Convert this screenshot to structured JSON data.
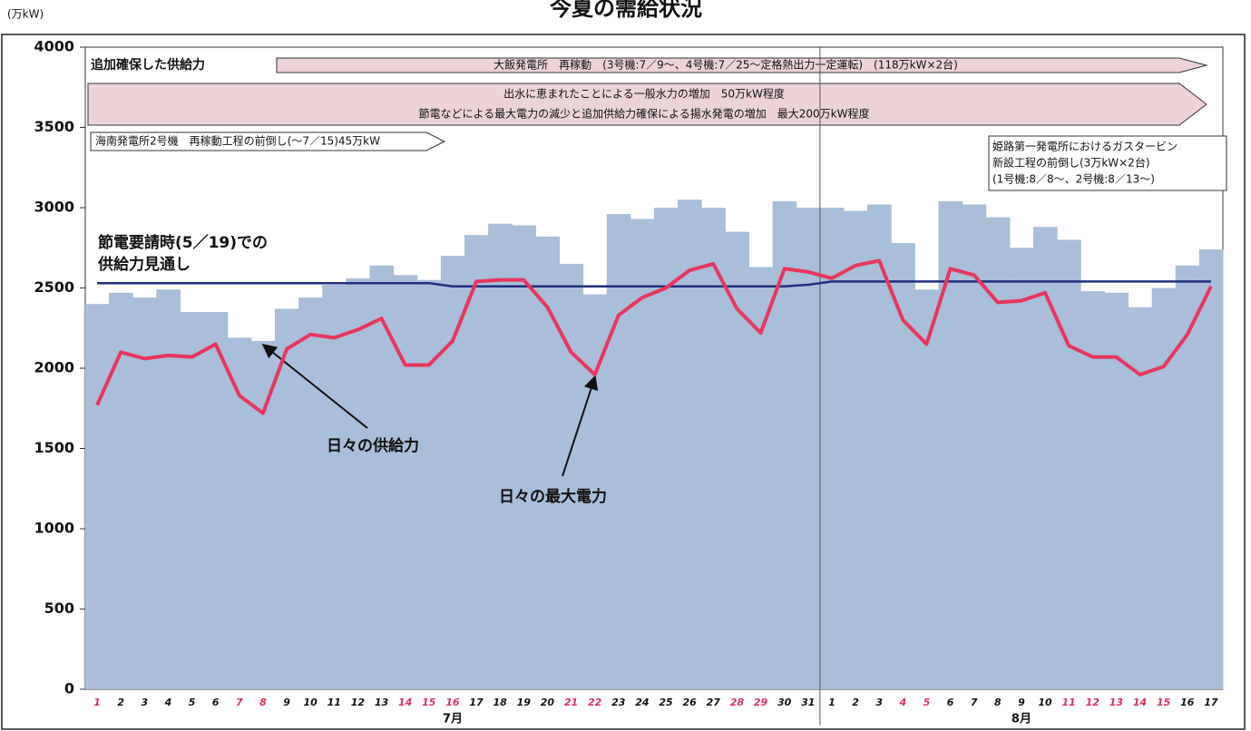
{
  "chart_data": {
    "type": "bar_line",
    "title": "今夏の需給状況",
    "y_unit": "(万kW)",
    "categories": [
      "1",
      "2",
      "3",
      "4",
      "5",
      "6",
      "7",
      "8",
      "9",
      "10",
      "11",
      "12",
      "13",
      "14",
      "15",
      "16",
      "17",
      "18",
      "19",
      "20",
      "21",
      "22",
      "23",
      "24",
      "25",
      "26",
      "27",
      "28",
      "29",
      "30",
      "31",
      "1",
      "2",
      "3",
      "4",
      "5",
      "6",
      "7",
      "8",
      "9",
      "10",
      "11",
      "12",
      "13",
      "14",
      "15",
      "16",
      "17"
    ],
    "category_label_colors": [
      "#e0305a",
      "#111",
      "#111",
      "#111",
      "#111",
      "#111",
      "#e0305a",
      "#e0305a",
      "#111",
      "#111",
      "#111",
      "#111",
      "#111",
      "#e0305a",
      "#e0305a",
      "#e0305a",
      "#111",
      "#111",
      "#111",
      "#111",
      "#e0305a",
      "#e0305a",
      "#111",
      "#111",
      "#111",
      "#111",
      "#111",
      "#e0305a",
      "#e0305a",
      "#111",
      "#111",
      "#111",
      "#111",
      "#111",
      "#e0305a",
      "#e0305a",
      "#111",
      "#111",
      "#111",
      "#111",
      "#111",
      "#e0305a",
      "#e0305a",
      "#e0305a",
      "#e0305a",
      "#e0305a",
      "#111",
      "#111"
    ],
    "month_labels": [
      "7月",
      "8月"
    ],
    "ylim": [
      0,
      4000
    ],
    "yticks": [
      0,
      500,
      1000,
      1500,
      2000,
      2500,
      3000,
      3500,
      4000
    ],
    "series": [
      {
        "name": "日々の供給力",
        "color": "#a9bed8",
        "values": [
          2400,
          2470,
          2440,
          2490,
          2350,
          2350,
          2190,
          2170,
          2370,
          2440,
          2520,
          2560,
          2640,
          2580,
          2550,
          2700,
          2830,
          2900,
          2890,
          2820,
          2650,
          2460,
          2960,
          2930,
          3000,
          3050,
          3000,
          2850,
          2630,
          3040,
          3000,
          3000,
          2980,
          3020,
          2780,
          2490,
          3040,
          3020,
          2940,
          2750,
          2880,
          2800,
          2480,
          2470,
          2380,
          2500,
          2640,
          2740
        ]
      },
      {
        "name": "日々の最大電力",
        "color": "#e8365d",
        "values": [
          1770,
          2100,
          2060,
          2080,
          2070,
          2150,
          1830,
          1720,
          2120,
          2210,
          2190,
          2240,
          2310,
          2020,
          2020,
          2170,
          2540,
          2550,
          2550,
          2380,
          2100,
          1960,
          2330,
          2440,
          2500,
          2610,
          2650,
          2370,
          2220,
          2620,
          2600,
          2560,
          2640,
          2670,
          2300,
          2150,
          2620,
          2580,
          2410,
          2420,
          2470,
          2140,
          2070,
          2070,
          1960,
          2010,
          2210,
          2510
        ]
      },
      {
        "name_lines": [
          "節電要請時(5／19)での",
          "供給力見通し"
        ],
        "color": "#1f2f80",
        "values": [
          2530,
          2530,
          2530,
          2530,
          2530,
          2530,
          2530,
          2530,
          2530,
          2530,
          2530,
          2530,
          2530,
          2530,
          2530,
          2510,
          2510,
          2510,
          2510,
          2510,
          2510,
          2510,
          2510,
          2510,
          2510,
          2510,
          2510,
          2510,
          2510,
          2510,
          2520,
          2540,
          2540,
          2540,
          2540,
          2540,
          2540,
          2540,
          2540,
          2540,
          2540,
          2540,
          2540,
          2540,
          2540,
          2540,
          2540,
          2540
        ]
      }
    ],
    "annotations": {
      "added_supply": "追加確保した供給力",
      "ohi": "大飯発電所　再稼動　(3号機:7／9～、4号機:7／25～定格熱出力一定運転)　(118万kW×2台)",
      "hydro": "出水に恵まれたことによる一般水力の増加　50万kW程度",
      "pumped": "節電などによる最大電力の減少と追加供給力確保による揚水発電の増加　最大200万kW程度",
      "kainan": "海南発電所2号機　再稼動工程の前倒し(～7／15)45万kW",
      "himeji": [
        "姫路第一発電所におけるガスタービン",
        "新設工程の前倒し(3万kW×2台)",
        "(1号機:8／8～、2号機:8／13～)"
      ]
    }
  }
}
